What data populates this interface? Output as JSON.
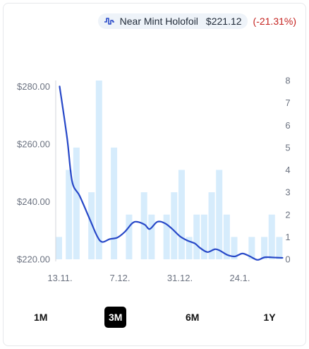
{
  "legend": {
    "series_name": "Near Mint Holofoil",
    "price": "$221.12",
    "change": "(-21.31%)",
    "line_icon": "line-chart-icon"
  },
  "colors": {
    "line": "#2748c8",
    "bar": "#d6ecfc",
    "axis_text": "#6b7280",
    "change_negative": "#c5221f"
  },
  "range_buttons": {
    "r1m": "1M",
    "r3m": "3M",
    "r6m": "6M",
    "r1y": "1Y",
    "active": "3M"
  },
  "chart_data": {
    "type": "bar+line",
    "x_tick_labels": [
      "13.11.",
      "7.12.",
      "31.12.",
      "24.1."
    ],
    "y_left": {
      "ticks": [
        "$220.00",
        "$240.00",
        "$260.00",
        "$280.00"
      ],
      "range": [
        220,
        290
      ]
    },
    "y_right": {
      "ticks": [
        "0",
        "1",
        "2",
        "3",
        "4",
        "5",
        "6",
        "7",
        "8"
      ],
      "range": [
        0,
        8
      ]
    },
    "grid": false,
    "line": {
      "points": [
        [
          0,
          280
        ],
        [
          3,
          262
        ],
        [
          5,
          247
        ],
        [
          8,
          242
        ],
        [
          12,
          234
        ],
        [
          15,
          228
        ],
        [
          17,
          226
        ],
        [
          20,
          227
        ],
        [
          23,
          227.5
        ],
        [
          26,
          229.5
        ],
        [
          29,
          232.5
        ],
        [
          31,
          233
        ],
        [
          34,
          232
        ],
        [
          36,
          230.5
        ],
        [
          39,
          233
        ],
        [
          42,
          232.5
        ],
        [
          45,
          230.5
        ],
        [
          48,
          228
        ],
        [
          51,
          226.5
        ],
        [
          54,
          225.5
        ],
        [
          56,
          224
        ],
        [
          59,
          222.5
        ],
        [
          62,
          223.5
        ],
        [
          64,
          223
        ],
        [
          67,
          221.5
        ],
        [
          70,
          221
        ],
        [
          73,
          222
        ],
        [
          76,
          221
        ],
        [
          79,
          219.8
        ],
        [
          82,
          220.7
        ],
        [
          86,
          220.6
        ],
        [
          89,
          220.5
        ]
      ]
    },
    "bars": {
      "days": [
        0,
        4,
        7,
        13,
        16,
        22,
        28,
        34,
        37,
        43,
        46,
        49,
        52,
        55,
        58,
        61,
        64,
        67,
        70,
        77,
        82,
        85,
        88
      ],
      "counts": [
        1,
        4,
        5,
        3,
        8,
        5,
        2,
        3,
        2,
        2,
        3,
        4,
        1,
        2,
        2,
        3,
        4,
        2,
        1,
        1,
        1,
        2,
        1
      ]
    }
  }
}
